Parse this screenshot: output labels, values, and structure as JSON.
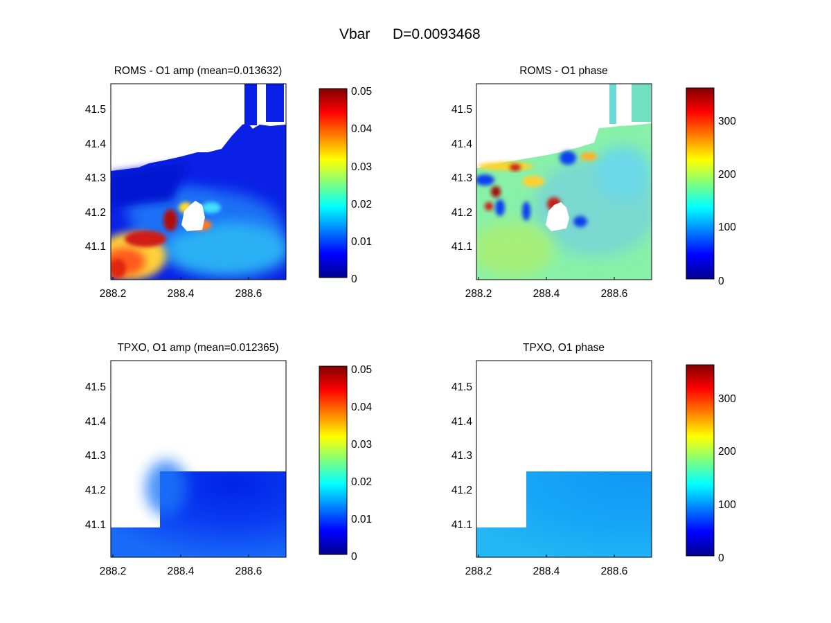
{
  "figure": {
    "title_var": "Vbar",
    "title_stat": "D=0.0093468"
  },
  "chart_data": [
    {
      "type": "heatmap",
      "title": "ROMS - O1 amp (mean=0.013632)",
      "xlim": [
        288.15,
        288.71
      ],
      "ylim": [
        41.0,
        41.57
      ],
      "xticks": [
        "288.2",
        "288.4",
        "288.6"
      ],
      "yticks": [
        "41.1",
        "41.2",
        "41.3",
        "41.4",
        "41.5"
      ],
      "colorbar": {
        "range": [
          0,
          0.05
        ],
        "ticks": [
          "0",
          "0.01",
          "0.02",
          "0.03",
          "0.04",
          "0.05"
        ]
      },
      "field_description": "Model O1 tidal velocity amplitude; high values (~0.04-0.05) in southwest, low (~0.002) over most of domain, white land masks"
    },
    {
      "type": "heatmap",
      "title": "ROMS - O1 phase",
      "xlim": [
        288.15,
        288.71
      ],
      "ylim": [
        41.0,
        41.57
      ],
      "xticks": [
        "288.2",
        "288.4",
        "288.6"
      ],
      "yticks": [
        "41.1",
        "41.2",
        "41.3",
        "41.4",
        "41.5"
      ],
      "colorbar": {
        "range": [
          0,
          360
        ],
        "ticks": [
          "0",
          "100",
          "200",
          "300"
        ]
      },
      "field_description": "Model O1 phase, mostly ~150-170 degrees with anomalies near coast and island"
    },
    {
      "type": "heatmap",
      "title": "TPXO, O1 amp (mean=0.012365)",
      "xlim": [
        288.15,
        288.71
      ],
      "ylim": [
        41.0,
        41.57
      ],
      "xticks": [
        "288.2",
        "288.4",
        "288.6"
      ],
      "yticks": [
        "41.1",
        "41.2",
        "41.3",
        "41.4",
        "41.5"
      ],
      "colorbar": {
        "range": [
          0,
          0.05
        ],
        "ticks": [
          "0",
          "0.01",
          "0.02",
          "0.03",
          "0.04",
          "0.05"
        ]
      },
      "field_description": "TPXO O1 amplitude, smooth ~0.005-0.015, covering only the southern portion"
    },
    {
      "type": "heatmap",
      "title": "TPXO, O1 phase",
      "xlim": [
        288.15,
        288.71
      ],
      "ylim": [
        41.0,
        41.57
      ],
      "xticks": [
        "288.2",
        "288.4",
        "288.6"
      ],
      "yticks": [
        "41.1",
        "41.2",
        "41.3",
        "41.4",
        "41.5"
      ],
      "colorbar": {
        "range": [
          0,
          360
        ],
        "ticks": [
          "0",
          "100",
          "200",
          "300"
        ]
      },
      "field_description": "TPXO O1 phase, nearly uniform ~110-130 degrees in southern portion"
    }
  ]
}
